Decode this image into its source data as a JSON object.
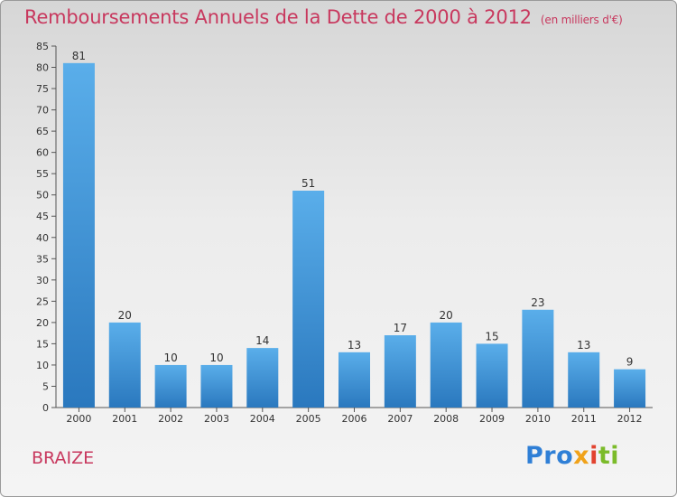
{
  "title": "Remboursements Annuels de la Dette de 2000 à 2012",
  "subtitle": "(en milliers d'€)",
  "commune": "BRAIZE",
  "logo": {
    "p1": "Pro",
    "p2": "x",
    "p3": "i",
    "p4": "ti"
  },
  "colors": {
    "bar_light": "#5aaeea",
    "bar_dark": "#2a78be",
    "title": "#c8385e"
  },
  "chart_data": {
    "type": "bar",
    "categories": [
      "2000",
      "2001",
      "2002",
      "2003",
      "2004",
      "2005",
      "2006",
      "2007",
      "2008",
      "2009",
      "2010",
      "2011",
      "2012"
    ],
    "values": [
      81,
      20,
      10,
      10,
      14,
      51,
      13,
      17,
      20,
      15,
      23,
      13,
      9
    ],
    "ylim": [
      0,
      85
    ],
    "yticks": [
      0,
      5,
      10,
      15,
      20,
      25,
      30,
      35,
      40,
      45,
      50,
      55,
      60,
      65,
      70,
      75,
      80,
      85
    ],
    "grid": false,
    "legend": "none"
  }
}
